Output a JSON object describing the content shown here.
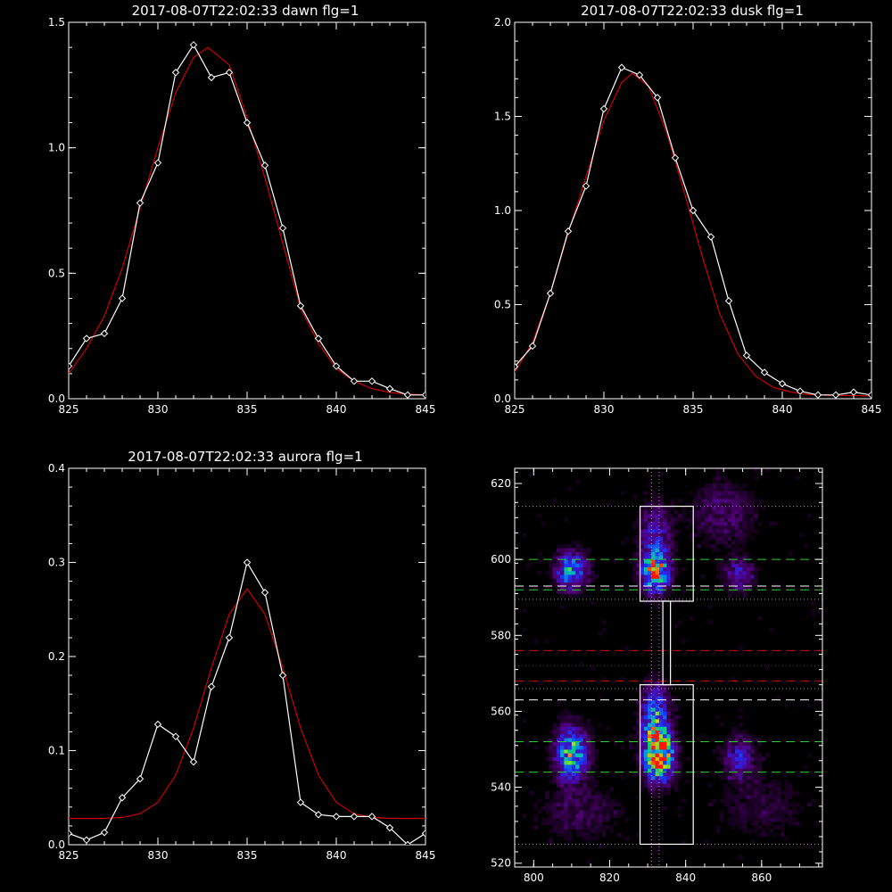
{
  "chart_data": [
    {
      "type": "line",
      "title": "2017-08-07T22:02:33 dawn flg=1",
      "xlim": [
        825,
        845
      ],
      "ylim": [
        0,
        1.5
      ],
      "xticks": [
        "825",
        "830",
        "835",
        "840",
        "845"
      ],
      "yticks": [
        "0.0",
        "0.5",
        "1.0",
        "1.5"
      ],
      "series": [
        {
          "color": "#ffffff",
          "marker": "diamond",
          "x": [
            825,
            826,
            827,
            828,
            829,
            830,
            831,
            832,
            833,
            834,
            835,
            836,
            837,
            838,
            839,
            840,
            841,
            842,
            843,
            844,
            845
          ],
          "y": [
            0.13,
            0.24,
            0.26,
            0.4,
            0.78,
            0.94,
            1.3,
            1.41,
            1.28,
            1.3,
            1.1,
            0.93,
            0.68,
            0.37,
            0.24,
            0.13,
            0.07,
            0.07,
            0.04,
            0.015,
            0.015
          ]
        },
        {
          "color": "#cc0000",
          "marker": "none",
          "x": [
            825,
            826,
            827,
            828,
            829,
            830,
            831,
            832,
            832.8,
            834,
            835,
            836,
            837,
            838,
            839,
            840,
            841,
            842,
            843,
            844,
            845
          ],
          "y": [
            0.1,
            0.2,
            0.33,
            0.52,
            0.76,
            1.0,
            1.22,
            1.36,
            1.4,
            1.33,
            1.12,
            0.88,
            0.62,
            0.36,
            0.22,
            0.12,
            0.07,
            0.04,
            0.025,
            0.018,
            0.015
          ]
        }
      ]
    },
    {
      "type": "line",
      "title": "2017-08-07T22:02:33 dusk flg=1",
      "xlim": [
        825,
        845
      ],
      "ylim": [
        0,
        2.0
      ],
      "xticks": [
        "825",
        "830",
        "835",
        "840",
        "845"
      ],
      "yticks": [
        "0.0",
        "0.5",
        "1.0",
        "1.5",
        "2.0"
      ],
      "series": [
        {
          "color": "#ffffff",
          "marker": "diamond",
          "x": [
            825,
            826,
            827,
            828,
            829,
            830,
            831,
            832,
            833,
            834,
            835,
            836,
            837,
            838,
            839,
            840,
            841,
            842,
            843,
            844,
            845
          ],
          "y": [
            0.17,
            0.28,
            0.56,
            0.89,
            1.13,
            1.54,
            1.76,
            1.72,
            1.6,
            1.28,
            1.0,
            0.86,
            0.52,
            0.23,
            0.14,
            0.08,
            0.04,
            0.02,
            0.02,
            0.035,
            0.02
          ]
        },
        {
          "color": "#cc0000",
          "marker": "none",
          "x": [
            825,
            826,
            827,
            828,
            829,
            830,
            831,
            831.6,
            832.5,
            833.5,
            834.5,
            835.5,
            836.5,
            837.5,
            838.5,
            839.5,
            840.5,
            841.5,
            842.5,
            843.5,
            844.5,
            845
          ],
          "y": [
            0.14,
            0.3,
            0.56,
            0.88,
            1.18,
            1.48,
            1.68,
            1.73,
            1.66,
            1.42,
            1.1,
            0.76,
            0.45,
            0.24,
            0.12,
            0.06,
            0.035,
            0.022,
            0.018,
            0.017,
            0.016,
            0.016
          ]
        }
      ]
    },
    {
      "type": "line",
      "title": "2017-08-07T22:02:33 aurora flg=1",
      "xlim": [
        825,
        845
      ],
      "ylim": [
        0,
        0.4
      ],
      "xticks": [
        "825",
        "830",
        "835",
        "840",
        "845"
      ],
      "yticks": [
        "0.0",
        "0.1",
        "0.2",
        "0.3",
        "0.4"
      ],
      "series": [
        {
          "color": "#ffffff",
          "marker": "diamond",
          "x": [
            825,
            826,
            827,
            828,
            829,
            830,
            831,
            832,
            833,
            834,
            835,
            836,
            837,
            838,
            839,
            840,
            841,
            842,
            843,
            844,
            845
          ],
          "y": [
            0.012,
            0.005,
            0.013,
            0.05,
            0.07,
            0.128,
            0.115,
            0.088,
            0.168,
            0.22,
            0.3,
            0.268,
            0.18,
            0.045,
            0.032,
            0.03,
            0.03,
            0.03,
            0.018,
            0.0,
            0.012
          ]
        },
        {
          "color": "#cc0000",
          "marker": "none",
          "x": [
            825,
            826,
            827,
            828,
            829,
            830,
            831,
            832,
            833,
            834,
            835,
            836,
            837,
            838,
            839,
            840,
            841,
            842,
            843,
            844,
            845
          ],
          "y": [
            0.028,
            0.028,
            0.028,
            0.029,
            0.033,
            0.045,
            0.074,
            0.124,
            0.188,
            0.245,
            0.272,
            0.245,
            0.188,
            0.124,
            0.074,
            0.045,
            0.033,
            0.029,
            0.028,
            0.028,
            0.028
          ]
        }
      ]
    },
    {
      "type": "heatmap",
      "title": "",
      "xlim": [
        795,
        876
      ],
      "ylim": [
        519,
        624
      ],
      "xticks": [
        "800",
        "820",
        "840",
        "860"
      ],
      "yticks": [
        "520",
        "540",
        "560",
        "580",
        "600",
        "620"
      ],
      "blobs": [
        {
          "x": 810,
          "y": 597,
          "amp": 0.55,
          "sx": 3.0,
          "sy": 3.5
        },
        {
          "x": 832,
          "y": 597,
          "amp": 0.8,
          "sx": 2.6,
          "sy": 4.0
        },
        {
          "x": 832,
          "y": 608,
          "amp": 0.3,
          "sx": 3.0,
          "sy": 5.0
        },
        {
          "x": 854,
          "y": 596,
          "amp": 0.3,
          "sx": 3.0,
          "sy": 3.0
        },
        {
          "x": 832,
          "y": 558,
          "amp": 0.55,
          "sx": 2.6,
          "sy": 6.0
        },
        {
          "x": 810,
          "y": 549,
          "amp": 0.65,
          "sx": 3.0,
          "sy": 5.0
        },
        {
          "x": 833,
          "y": 548,
          "amp": 1.0,
          "sx": 2.6,
          "sy": 4.5
        },
        {
          "x": 854,
          "y": 548,
          "amp": 0.3,
          "sx": 3.0,
          "sy": 4.0
        },
        {
          "x": 850,
          "y": 612,
          "amp": 0.2,
          "sx": 6.0,
          "sy": 6.0
        },
        {
          "x": 812,
          "y": 533,
          "amp": 0.15,
          "sx": 8.0,
          "sy": 5.0
        },
        {
          "x": 860,
          "y": 535,
          "amp": 0.12,
          "sx": 8.0,
          "sy": 6.0
        }
      ],
      "boxes": [
        {
          "x0": 828,
          "x1": 842,
          "y0": 589,
          "y1": 614
        },
        {
          "x0": 828,
          "x1": 842,
          "y0": 525,
          "y1": 567
        }
      ],
      "connector": {
        "x0": 834,
        "x1": 836,
        "y0": 567,
        "y1": 589
      },
      "hlines": [
        {
          "y": 614,
          "color": "#d070d0",
          "dash": "dotted"
        },
        {
          "y": 600,
          "color": "#33cc33",
          "dash": "dashed"
        },
        {
          "y": 593,
          "color": "#ffffff",
          "dash": "dashed"
        },
        {
          "y": 592,
          "color": "#33cc33",
          "dash": "dashed"
        },
        {
          "y": 589.5,
          "color": "#d070d0",
          "dash": "dotted"
        },
        {
          "y": 576,
          "color": "#cc0000",
          "dash": "dashed"
        },
        {
          "y": 572,
          "color": "#cc0000",
          "dash": "dotted"
        },
        {
          "y": 568,
          "color": "#cc0000",
          "dash": "dashed"
        },
        {
          "y": 566,
          "color": "#d070d0",
          "dash": "dotted"
        },
        {
          "y": 563,
          "color": "#ffffff",
          "dash": "dashed"
        },
        {
          "y": 552,
          "color": "#33cc33",
          "dash": "dashed"
        },
        {
          "y": 544,
          "color": "#33cc33",
          "dash": "dashed"
        },
        {
          "y": 525,
          "color": "#d070d0",
          "dash": "dotted"
        }
      ],
      "vlines": [
        {
          "x": 831,
          "color": "#d070d0",
          "dash": "dotted"
        },
        {
          "x": 833,
          "color": "#d070d0",
          "dash": "dotted"
        }
      ]
    }
  ]
}
